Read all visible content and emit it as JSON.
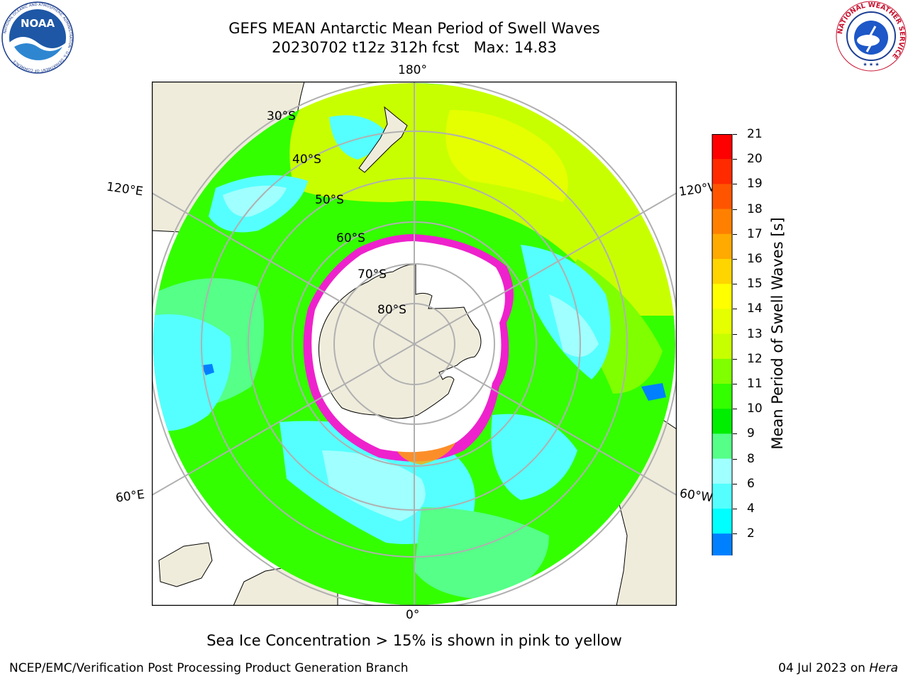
{
  "title": {
    "line1": "GEFS MEAN Antarctic Mean Period of Swell Waves",
    "line2": "20230702 t12z 312h fcst   Max: 14.83"
  },
  "logos": {
    "left": {
      "text": "NOAA",
      "ring_text": "NATIONAL OCEANIC AND ATMOSPHERIC ADMINISTRATION · U.S. DEPARTMENT OF COMMERCE"
    },
    "right": {
      "ring_text": "NATIONAL WEATHER SERVICE"
    }
  },
  "map": {
    "projection": "south-polar-stereographic",
    "longitude_labels": {
      "top": "180°",
      "bottom": "0°",
      "upper_left": "120°E",
      "upper_right": "120°W",
      "lower_left": "60°E",
      "lower_right": "60°W"
    },
    "latitude_labels": [
      "30°S",
      "40°S",
      "50°S",
      "60°S",
      "70°S",
      "80°S"
    ],
    "colors": {
      "land": "#efecdc",
      "ice": "#ffffff",
      "ice_edge": "#ee22cc",
      "grid": "#b0b0b0"
    }
  },
  "colorbar": {
    "label": "Mean Period of Swell Waves [s]",
    "ticks": [
      "21",
      "20",
      "19",
      "18",
      "17",
      "16",
      "15",
      "14",
      "13",
      "12",
      "11",
      "10",
      "9",
      "8",
      "6",
      "4",
      "2"
    ],
    "colors": [
      "#ff0000",
      "#ff2a00",
      "#ff5500",
      "#ff8000",
      "#ffaa00",
      "#ffd500",
      "#ffff00",
      "#e5ff00",
      "#c8ff00",
      "#7fff00",
      "#33ff00",
      "#00ee00",
      "#55ff88",
      "#a0ffff",
      "#55ffff",
      "#00ffff",
      "#0080ff",
      "#0040ff"
    ],
    "extend_color": "#0000ff"
  },
  "notes": {
    "ice": "Sea Ice Concentration > 15% is shown in pink to yellow"
  },
  "footer": {
    "left": "NCEP/EMC/Verification Post Processing Product Generation Branch",
    "date": "04 Jul 2023 on",
    "system": "Hera"
  }
}
